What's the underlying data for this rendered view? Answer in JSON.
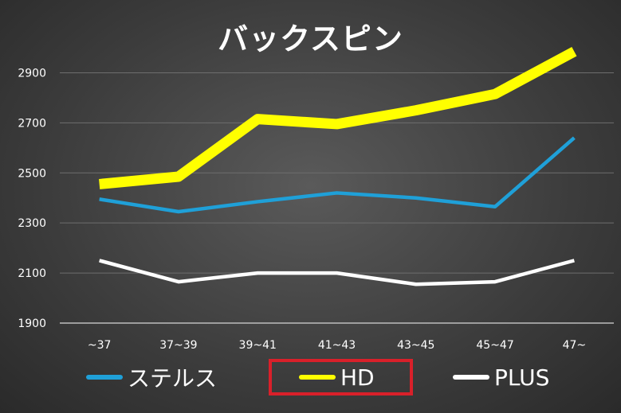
{
  "chart_data": {
    "type": "line",
    "title": "バックスピン",
    "categories": [
      "~37",
      "37~39",
      "39~41",
      "41~43",
      "43~45",
      "45~47",
      "47~"
    ],
    "ylim": [
      1900,
      3000
    ],
    "yticks": [
      1900,
      2100,
      2300,
      2500,
      2700,
      2900
    ],
    "grid": true,
    "legend_position": "bottom",
    "series": [
      {
        "name": "ステルス",
        "color": "#1fa0d8",
        "values": [
          2395,
          2345,
          2385,
          2420,
          2400,
          2365,
          2640
        ]
      },
      {
        "name": "HD",
        "color": "#ffff00",
        "values": [
          2455,
          2485,
          2715,
          2695,
          2750,
          2815,
          2985
        ]
      },
      {
        "name": "PLUS",
        "color": "#ffffff",
        "values": [
          2150,
          2065,
          2100,
          2100,
          2055,
          2065,
          2150
        ]
      }
    ],
    "highlighted_series": "HD",
    "highlight_color": "#d9202a"
  }
}
